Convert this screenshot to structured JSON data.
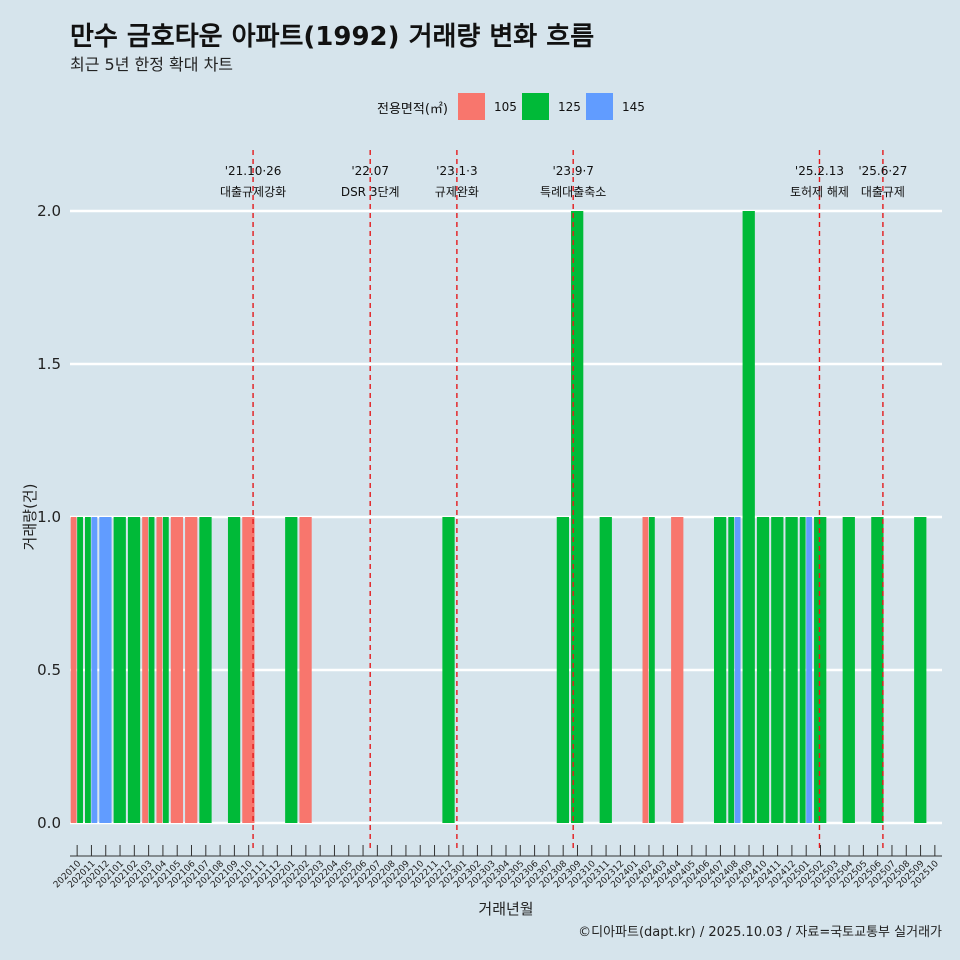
{
  "title": "만수 금호타운 아파트(1992) 거래량 변화 흐름",
  "subtitle": "최근 5년 한정 확대 차트",
  "caption": "©디아파트(dapt.kr) / 2025.10.03 / 자료=국토교통부 실거래가",
  "colors": {
    "105": "#f8766d",
    "125": "#00ba38",
    "145": "#619cff",
    "background": "#d6e4ec",
    "event_line": "#e41a1c"
  },
  "chart_data": {
    "type": "bar",
    "xlabel": "거래년월",
    "ylabel": "거래량(건)",
    "ylim": [
      0,
      2
    ],
    "yticks": [
      "0.0",
      "0.5",
      "1.0",
      "1.5",
      "2.0"
    ],
    "grid": "horizontal",
    "legend": {
      "title": "전용면적(㎡)",
      "position": "top",
      "entries": [
        "105",
        "125",
        "145"
      ]
    },
    "categories": [
      "202010",
      "202011",
      "202012",
      "202101",
      "202102",
      "202103",
      "202104",
      "202105",
      "202106",
      "202107",
      "202108",
      "202109",
      "202110",
      "202111",
      "202112",
      "202201",
      "202202",
      "202203",
      "202204",
      "202205",
      "202206",
      "202207",
      "202208",
      "202209",
      "202210",
      "202211",
      "202212",
      "202301",
      "202302",
      "202303",
      "202304",
      "202305",
      "202306",
      "202307",
      "202308",
      "202309",
      "202310",
      "202311",
      "202312",
      "202401",
      "202402",
      "202403",
      "202404",
      "202405",
      "202406",
      "202407",
      "202408",
      "202409",
      "202410",
      "202411",
      "202412",
      "202501",
      "202502",
      "202503",
      "202504",
      "202505",
      "202506",
      "202507",
      "202508",
      "202509",
      "202510"
    ],
    "series": [
      {
        "name": "105",
        "values": [
          1,
          0,
          0,
          0,
          0,
          1,
          1,
          1,
          1,
          0,
          0,
          0,
          1,
          0,
          0,
          0,
          1,
          0,
          0,
          0,
          0,
          0,
          0,
          0,
          0,
          0,
          0,
          0,
          0,
          0,
          0,
          0,
          0,
          0,
          0,
          0,
          0,
          0,
          0,
          0,
          1,
          0,
          1,
          0,
          0,
          0,
          0,
          0,
          0,
          0,
          0,
          0,
          0,
          0,
          0,
          0,
          0,
          0,
          0,
          0,
          0
        ]
      },
      {
        "name": "125",
        "values": [
          1,
          1,
          0,
          1,
          1,
          1,
          1,
          0,
          0,
          1,
          0,
          1,
          0,
          0,
          0,
          1,
          0,
          0,
          0,
          0,
          0,
          0,
          0,
          0,
          0,
          0,
          1,
          0,
          0,
          0,
          0,
          0,
          0,
          0,
          1,
          2,
          0,
          1,
          0,
          0,
          1,
          0,
          0,
          0,
          0,
          1,
          1,
          2,
          1,
          1,
          1,
          1,
          1,
          0,
          1,
          0,
          1,
          0,
          0,
          1,
          0
        ]
      },
      {
        "name": "145",
        "values": [
          0,
          1,
          1,
          0,
          0,
          0,
          0,
          0,
          0,
          0,
          0,
          0,
          0,
          0,
          0,
          0,
          0,
          0,
          0,
          0,
          0,
          0,
          0,
          0,
          0,
          0,
          0,
          0,
          0,
          0,
          0,
          0,
          0,
          0,
          0,
          0,
          0,
          0,
          0,
          0,
          0,
          0,
          0,
          0,
          0,
          0,
          1,
          0,
          0,
          0,
          0,
          1,
          0,
          0,
          0,
          0,
          0,
          0,
          0,
          0,
          0
        ]
      }
    ],
    "events": [
      {
        "date": "2021-10-26",
        "date_label": "'21.10·26",
        "label": "대출규제강화"
      },
      {
        "date": "2022-07-01",
        "date_label": "'22.07",
        "label": "DSR 3단계"
      },
      {
        "date": "2023-01-03",
        "date_label": "'23.1·3",
        "label": "규제완화"
      },
      {
        "date": "2023-09-07",
        "date_label": "'23.9·7",
        "label": "특례대출축소"
      },
      {
        "date": "2025-02-13",
        "date_label": "'25.2.13",
        "label": "토허제 해제"
      },
      {
        "date": "2025-06-27",
        "date_label": "'25.6·27",
        "label": "대출규제"
      }
    ]
  }
}
